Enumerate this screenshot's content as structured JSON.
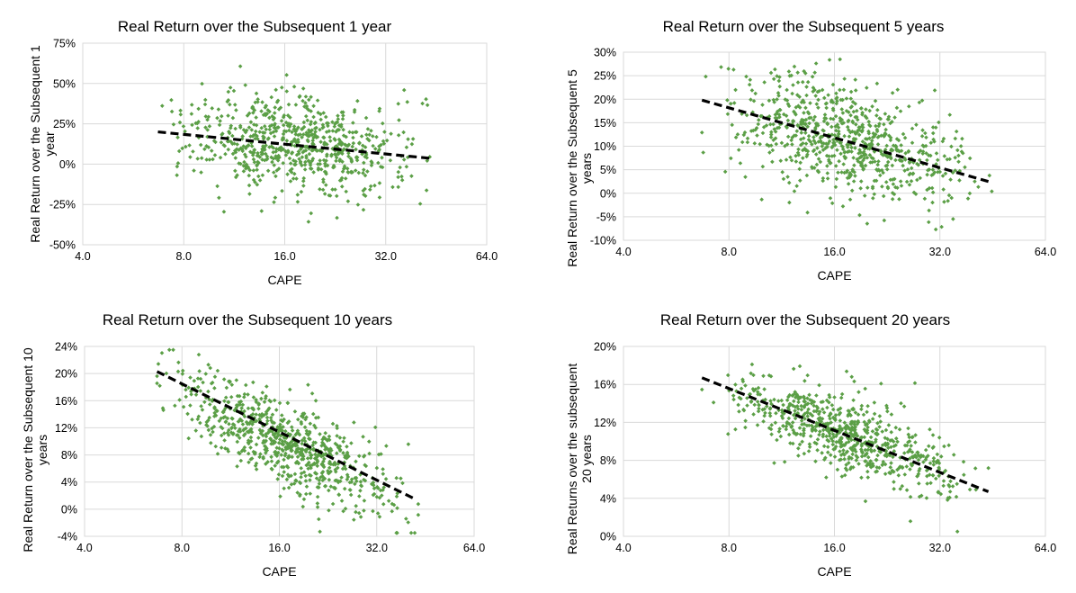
{
  "chart_data": [
    {
      "type": "scatter",
      "title": "Real Return over the Subsequent 1 year",
      "xlabel": "CAPE",
      "ylabel": [
        "Real Return over the Subsequent 1",
        "year"
      ],
      "x_scale": "log2",
      "xlim": [
        4,
        64
      ],
      "x_ticks": [
        4,
        8,
        16,
        32,
        64
      ],
      "x_tick_labels": [
        "4.0",
        "8.0",
        "16.0",
        "32.0",
        "64.0"
      ],
      "ylim": [
        -50,
        75
      ],
      "y_ticks": [
        -50,
        -25,
        0,
        25,
        50,
        75
      ],
      "y_tick_labels": [
        "-50%",
        "-25%",
        "0%",
        "25%",
        "50%",
        "75%"
      ],
      "trendline": {
        "x": [
          6.7,
          44
        ],
        "y": [
          20,
          3.5
        ]
      },
      "cloud": {
        "x_range": [
          6.7,
          45
        ],
        "n": 700,
        "noise": 15,
        "mean_at_min": 20,
        "mean_at_max": 4
      },
      "marker_color": "#5b9f46"
    },
    {
      "type": "scatter",
      "title": "Real Return over the Subsequent 5 years",
      "xlabel": "CAPE",
      "ylabel": [
        "Real Return over the Subsequent 5",
        "years"
      ],
      "x_scale": "log2",
      "xlim": [
        4,
        64
      ],
      "x_ticks": [
        4,
        8,
        16,
        32,
        64
      ],
      "x_tick_labels": [
        "4.0",
        "8.0",
        "16.0",
        "32.0",
        "64.0"
      ],
      "ylim": [
        -10,
        30
      ],
      "y_ticks": [
        -10,
        -5,
        0,
        5,
        10,
        15,
        20,
        25,
        30
      ],
      "y_tick_labels": [
        "-10%",
        "-5%",
        "0%",
        "5%",
        "10%",
        "15%",
        "20%",
        "25%",
        "30%"
      ],
      "trendline": {
        "x": [
          6.7,
          44
        ],
        "y": [
          19.8,
          2.5
        ]
      },
      "cloud": {
        "x_range": [
          6.7,
          45
        ],
        "n": 750,
        "noise": 5.5,
        "mean_at_min": 19.5,
        "mean_at_max": 2.5
      },
      "marker_color": "#5b9f46"
    },
    {
      "type": "scatter",
      "title": "Real Return over the Subsequent 10 years",
      "xlabel": "CAPE",
      "ylabel": [
        "Real Return over the Subsequent 10",
        "years"
      ],
      "x_scale": "log2",
      "xlim": [
        4,
        64
      ],
      "x_ticks": [
        4,
        8,
        16,
        32,
        64
      ],
      "x_tick_labels": [
        "4.0",
        "8.0",
        "16.0",
        "32.0",
        "64.0"
      ],
      "ylim": [
        -4,
        24
      ],
      "y_ticks": [
        -4,
        0,
        4,
        8,
        12,
        16,
        20,
        24
      ],
      "y_tick_labels": [
        "-4%",
        "0%",
        "4%",
        "8%",
        "12%",
        "16%",
        "20%",
        "24%"
      ],
      "trendline": {
        "x": [
          6.7,
          42
        ],
        "y": [
          20.3,
          1.5
        ]
      },
      "cloud": {
        "x_range": [
          6.7,
          43
        ],
        "n": 750,
        "noise": 3,
        "mean_at_min": 19,
        "mean_at_max": 0.5
      },
      "marker_color": "#5b9f46"
    },
    {
      "type": "scatter",
      "title": "Real Return over the Subsequent 20 years",
      "xlabel": "CAPE",
      "ylabel": [
        "Real Returns over the subsequent",
        "20 years"
      ],
      "x_scale": "log2",
      "xlim": [
        4,
        64
      ],
      "x_ticks": [
        4,
        8,
        16,
        32,
        64
      ],
      "x_tick_labels": [
        "4.0",
        "8.0",
        "16.0",
        "32.0",
        "64.0"
      ],
      "ylim": [
        0,
        20
      ],
      "y_ticks": [
        0,
        4,
        8,
        12,
        16,
        20
      ],
      "y_tick_labels": [
        "0%",
        "4%",
        "8%",
        "12%",
        "16%",
        "20%"
      ],
      "trendline": {
        "x": [
          6.7,
          44
        ],
        "y": [
          16.7,
          4.7
        ]
      },
      "cloud": {
        "x_range": [
          6.7,
          44
        ],
        "n": 700,
        "noise": 2,
        "mean_at_min": 16,
        "mean_at_max": 5.5
      },
      "marker_color": "#5b9f46"
    }
  ]
}
